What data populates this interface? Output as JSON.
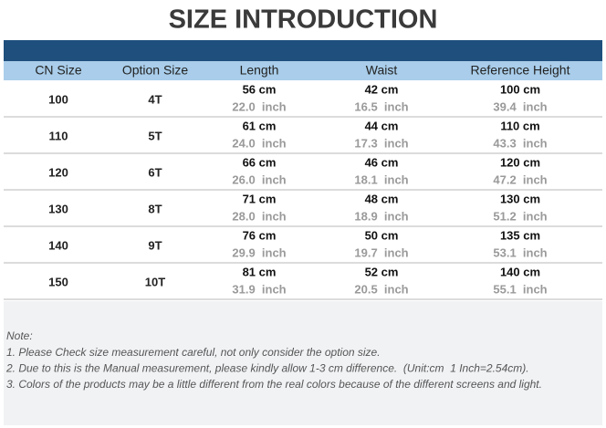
{
  "header": {
    "title": "SIZE  INTRODUCTION"
  },
  "table": {
    "columns": [
      "CN Size",
      "Option Size",
      "Length",
      "Waist",
      "Reference Height"
    ],
    "rows": [
      [
        "100",
        "4T",
        "56 cm",
        "22.0  inch",
        "42 cm",
        "16.5  inch",
        "100 cm",
        "39.4  inch"
      ],
      [
        "110",
        "5T",
        "61 cm",
        "24.0  inch",
        "44 cm",
        "17.3  inch",
        "110 cm",
        "43.3  inch"
      ],
      [
        "120",
        "6T",
        "66 cm",
        "26.0  inch",
        "46 cm",
        "18.1  inch",
        "120 cm",
        "47.2  inch"
      ],
      [
        "130",
        "8T",
        "71 cm",
        "28.0  inch",
        "48 cm",
        "18.9  inch",
        "130 cm",
        "51.2  inch"
      ],
      [
        "140",
        "9T",
        "76 cm",
        "29.9  inch",
        "50 cm",
        "19.7  inch",
        "135 cm",
        "53.1  inch"
      ],
      [
        "150",
        "10T",
        "81 cm",
        "31.9  inch",
        "52 cm",
        "20.5  inch",
        "140 cm",
        "55.1  inch"
      ]
    ]
  },
  "notes": {
    "heading": "Note:",
    "lines": [
      "1. Please Check size measurement careful, not only consider the option size.",
      "2. Due to this is the Manual measurement, please kindly allow 1-3 cm difference.  (Unit:cm  1 Inch=2.54cm).",
      "3. Colors of the products may be a little different from the real colors because of the different screens and light."
    ]
  }
}
